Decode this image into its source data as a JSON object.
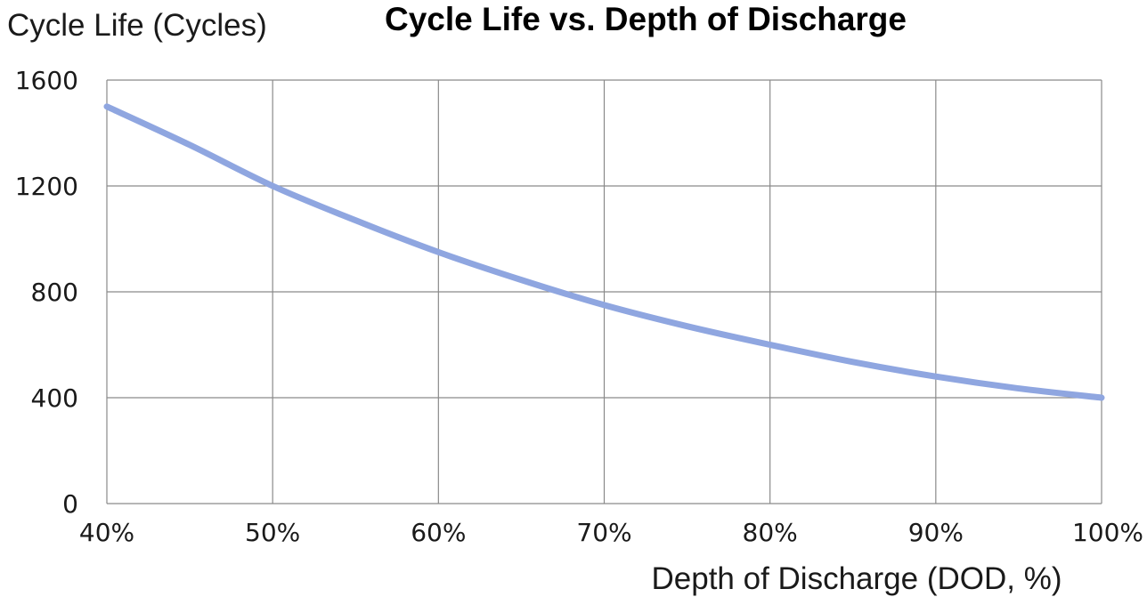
{
  "chart_data": {
    "type": "line",
    "title": "Cycle Life vs. Depth of Discharge",
    "ylabel": "Cycle Life (Cycles)",
    "xlabel": "Depth of Discharge (DOD, %)",
    "x_ticks": [
      "40%",
      "50%",
      "60%",
      "70%",
      "80%",
      "90%",
      "100%"
    ],
    "y_ticks": [
      "0",
      "400",
      "800",
      "1200",
      "1600"
    ],
    "xlim": [
      40,
      100
    ],
    "ylim": [
      0,
      1600
    ],
    "grid": true,
    "series": [
      {
        "color": "#8fa6e0",
        "x": [
          40,
          45,
          50,
          55,
          60,
          65,
          70,
          75,
          80,
          85,
          90,
          95,
          100
        ],
        "y": [
          1500,
          1355,
          1200,
          1070,
          950,
          845,
          750,
          670,
          600,
          535,
          480,
          435,
          400
        ]
      }
    ]
  }
}
